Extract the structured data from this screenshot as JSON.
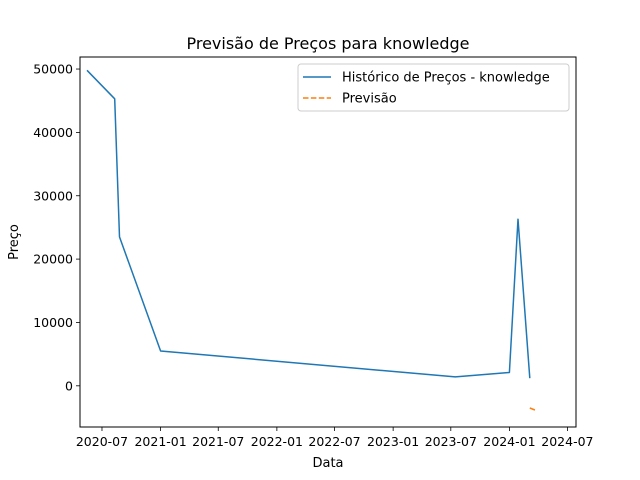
{
  "chart_data": {
    "type": "line",
    "title": "Previsão de Preços para knowledge",
    "xlabel": "Data",
    "ylabel": "Preço",
    "x_ticks": [
      "2020-07",
      "2021-01",
      "2021-07",
      "2022-01",
      "2022-07",
      "2023-01",
      "2023-07",
      "2024-01",
      "2024-07"
    ],
    "y_ticks": [
      0,
      10000,
      20000,
      30000,
      40000,
      50000
    ],
    "xlim": [
      "2020-04-23",
      "2024-07-28"
    ],
    "ylim": [
      -6500,
      51900
    ],
    "grid": false,
    "legend": "top-right",
    "series": [
      {
        "name": "Histórico de Preços - knowledge",
        "color": "#1f77b4",
        "style": "solid",
        "points": [
          {
            "x": "2020-05-15",
            "y": 49800
          },
          {
            "x": "2020-08-10",
            "y": 45300
          },
          {
            "x": "2020-08-25",
            "y": 23500
          },
          {
            "x": "2021-01-01",
            "y": 5500
          },
          {
            "x": "2023-07-15",
            "y": 1400
          },
          {
            "x": "2024-01-01",
            "y": 2100
          },
          {
            "x": "2024-01-28",
            "y": 26300
          },
          {
            "x": "2024-03-05",
            "y": 1200
          }
        ]
      },
      {
        "name": "Previsão",
        "color": "#ff7f0e",
        "style": "dashed",
        "points": [
          {
            "x": "2024-03-05",
            "y": -3500
          },
          {
            "x": "2024-03-25",
            "y": -3900
          }
        ]
      }
    ]
  }
}
